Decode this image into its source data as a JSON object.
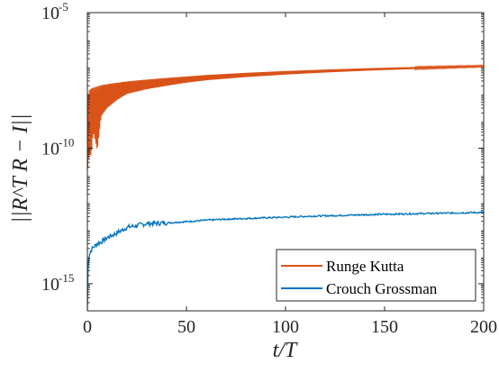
{
  "chart_data": {
    "type": "line",
    "title": "",
    "xlabel": "t/T",
    "ylabel": "||R^T R − I||",
    "xlim": [
      0,
      200
    ],
    "ylim": [
      1e-16,
      1e-05
    ],
    "yscale": "log",
    "x_ticks": [
      0,
      50,
      100,
      150,
      200
    ],
    "y_ticks": [
      {
        "value": 1e-15,
        "base": "10",
        "exp": "-15"
      },
      {
        "value": 1e-10,
        "base": "10",
        "exp": "-10"
      },
      {
        "value": 1e-05,
        "base": "10",
        "exp": "-5"
      }
    ],
    "grid": false,
    "legend_position": "bottom-right",
    "series": [
      {
        "name": "Runge Kutta",
        "color": "#D95319",
        "x": [
          0,
          0.5,
          1,
          2,
          3,
          5,
          7,
          10,
          15,
          20,
          30,
          40,
          50,
          60,
          80,
          100,
          120,
          140,
          160,
          180,
          200
        ],
        "upper": [
          6e-09,
          1e-08,
          1.4e-08,
          1.6e-08,
          1.7e-08,
          1.9e-08,
          2.1e-08,
          2.3e-08,
          2.6e-08,
          2.9e-08,
          3.4e-08,
          3.9e-08,
          4.4e-08,
          5e-08,
          6e-08,
          7e-08,
          7.9e-08,
          8.8e-08,
          9.6e-08,
          1.04e-07,
          1.12e-07
        ],
        "lower": [
          1e-11,
          3e-11,
          6e-11,
          5e-11,
          4e-10,
          8e-11,
          1.5e-09,
          3e-09,
          6e-09,
          1e-08,
          1.5e-08,
          2e-08,
          2.6e-08,
          3.2e-08,
          4.2e-08,
          5.2e-08,
          6.2e-08,
          7.2e-08,
          8.1e-08,
          9e-08,
          1e-07
        ]
      },
      {
        "name": "Crouch Grossman",
        "color": "#0072BD",
        "x": [
          0,
          0.3,
          0.6,
          1,
          2,
          3,
          5,
          7,
          10,
          15,
          20,
          25,
          30,
          40,
          50,
          60,
          70,
          80,
          90,
          100,
          110,
          120,
          130,
          140,
          150,
          160,
          170,
          180,
          190,
          200
        ],
        "values": [
          1e-16,
          3e-15,
          8e-15,
          1.2e-14,
          1.8e-14,
          2.2e-14,
          3e-14,
          3.5e-14,
          5e-14,
          7.5e-14,
          1.2e-13,
          1.4e-13,
          1.65e-13,
          1.75e-13,
          1.95e-13,
          2.2e-13,
          2.4e-13,
          2.55e-13,
          2.7e-13,
          2.85e-13,
          3.05e-13,
          3.2e-13,
          3.35e-13,
          3.5e-13,
          3.65e-13,
          3.75e-13,
          3.9e-13,
          4e-13,
          4.15e-13,
          4.3e-13
        ]
      }
    ]
  }
}
